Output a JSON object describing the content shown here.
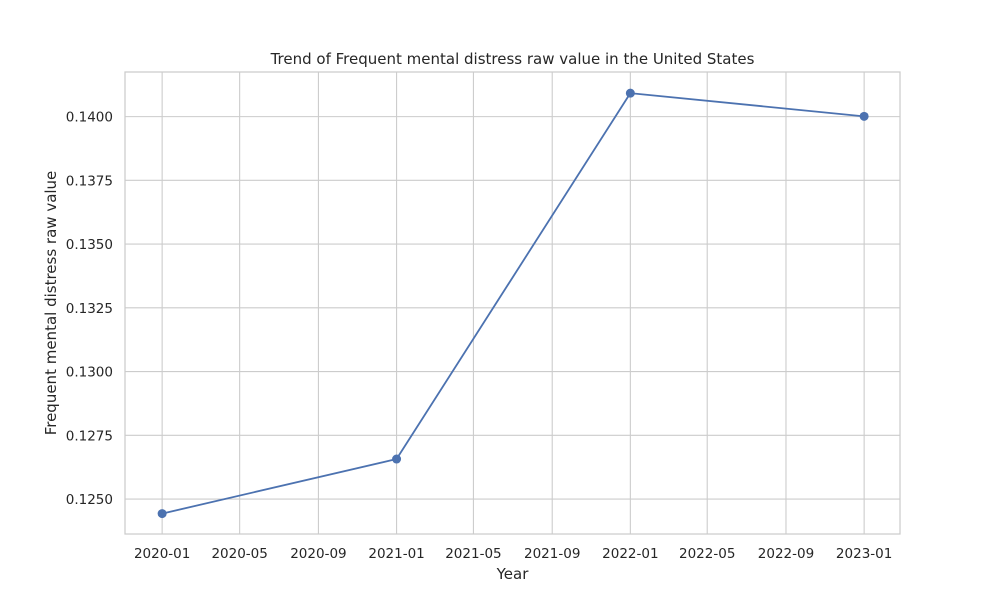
{
  "chart_data": {
    "type": "line",
    "title": "Trend of Frequent mental distress raw value in the United States",
    "xlabel": "Year",
    "ylabel": "Frequent mental distress raw value",
    "x": [
      "2020-01-01",
      "2021-01-01",
      "2022-01-01",
      "2023-01-01"
    ],
    "series": [
      {
        "values": [
          0.12443,
          0.12657,
          0.14092,
          0.14001
        ]
      }
    ],
    "x_range": [
      "2019-11-04",
      "2023-02-26"
    ],
    "ylim": [
      0.12363,
      0.14175
    ],
    "x_ticks": [
      "2020-01",
      "2020-05",
      "2020-09",
      "2021-01",
      "2021-05",
      "2021-09",
      "2022-01",
      "2022-05",
      "2022-09",
      "2023-01"
    ],
    "y_ticks": [
      "0.1250",
      "0.1275",
      "0.1300",
      "0.1325",
      "0.1350",
      "0.1375",
      "0.1400"
    ],
    "grid": true,
    "marker": "circle",
    "colors": {
      "line": "#4c72b0",
      "grid": "#cccccc",
      "frame": "#cccccc",
      "text": "#262626"
    }
  }
}
